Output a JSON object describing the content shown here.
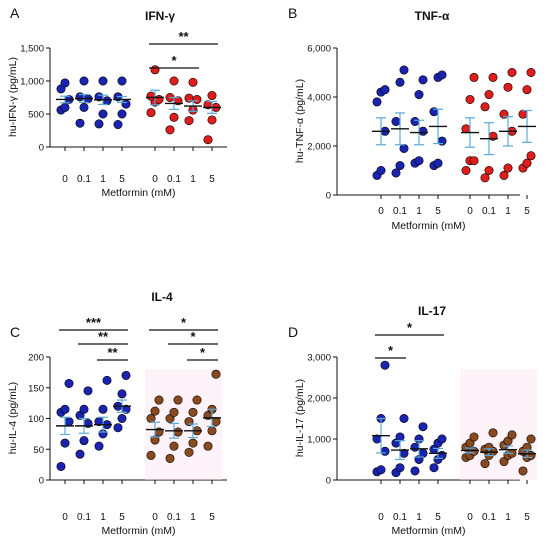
{
  "colors": {
    "blue": "#1a24b0",
    "red": "#e01d1d",
    "brown": "#8a4a20",
    "error_bar": "#5aa9d6",
    "mean_line": "#111111"
  },
  "chart_data": [
    {
      "panel": "A",
      "title": "IFN-γ",
      "type": "scatter",
      "ylabel": "hu-IFN-γ (pg/mL)",
      "xlabel": "Metformin (mM)",
      "yticks": [
        "0",
        "500",
        "1,000",
        "1,500"
      ],
      "ylim": [
        0,
        1500
      ],
      "categories": [
        "0",
        "0.1",
        "1",
        "5"
      ],
      "groups": [
        {
          "color": "blue",
          "mean": [
            720,
            735,
            715,
            720
          ],
          "sem": [
            50,
            60,
            70,
            45
          ],
          "points": [
            [
              560,
              600,
              720,
              880,
              970
            ],
            [
              360,
              600,
              730,
              760,
              1000
            ],
            [
              350,
              500,
              700,
              760,
              1000
            ],
            [
              340,
              500,
              650,
              760,
              1000
            ]
          ]
        },
        {
          "color": "red",
          "mean": [
            750,
            660,
            620,
            600
          ],
          "sem": [
            110,
            90,
            80,
            90
          ],
          "points": [
            [
              520,
              680,
              720,
              770,
              1170
            ],
            [
              260,
              450,
              700,
              750,
              1000
            ],
            [
              400,
              560,
              720,
              740,
              980
            ],
            [
              110,
              410,
              600,
              640,
              780
            ]
          ]
        }
      ],
      "significance": [
        {
          "label": "*",
          "span": [
            "0",
            "1"
          ]
        },
        {
          "label": "**",
          "span": [
            "0",
            "5"
          ]
        }
      ]
    },
    {
      "panel": "B",
      "title": "TNF-α",
      "type": "scatter",
      "ylabel": "hu-TNF-α (pg/mL)",
      "xlabel": "Metformin (mM)",
      "yticks": [
        "0",
        "2,000",
        "4,000",
        "6,000"
      ],
      "ylim": [
        0,
        6000
      ],
      "categories": [
        "0",
        "0.1",
        "1",
        "5"
      ],
      "groups": [
        {
          "color": "blue",
          "mean": [
            2600,
            2700,
            2550,
            2800
          ],
          "sem": [
            550,
            650,
            500,
            700
          ],
          "points": [
            [
              800,
              1000,
              2600,
              3800,
              4200,
              4300
            ],
            [
              900,
              1200,
              1900,
              3000,
              4600,
              5100
            ],
            [
              1300,
              1400,
              2600,
              3000,
              4100,
              4700
            ],
            [
              1200,
              1300,
              2200,
              3400,
              4800,
              4900
            ]
          ]
        },
        {
          "color": "red",
          "mean": [
            2550,
            2300,
            2600,
            2800
          ],
          "sem": [
            600,
            650,
            600,
            650
          ],
          "points": [
            [
              1000,
              1400,
              1400,
              2700,
              3900,
              4800
            ],
            [
              700,
              1000,
              2400,
              3600,
              4100,
              4800
            ],
            [
              800,
              1100,
              2600,
              3300,
              4400,
              5000
            ],
            [
              1100,
              1300,
              1600,
              3300,
              4300,
              5000
            ]
          ]
        }
      ],
      "significance": []
    },
    {
      "panel": "C",
      "title": "IL-4",
      "type": "scatter",
      "ylabel": "hu-IL-4 (pg/mL)",
      "xlabel": "Metformin (mM)",
      "yticks": [
        "0",
        "50",
        "100",
        "150",
        "200"
      ],
      "ylim": [
        0,
        200
      ],
      "categories": [
        "0",
        "0.1",
        "1",
        "5"
      ],
      "groups": [
        {
          "color": "blue",
          "mean": [
            88,
            88,
            90,
            120
          ],
          "sem": [
            14,
            12,
            12,
            10
          ],
          "points": [
            [
              22,
              60,
              95,
              110,
              115,
              157
            ],
            [
              42,
              64,
              92,
              105,
              115,
              145
            ],
            [
              55,
              75,
              90,
              95,
              115,
              162
            ],
            [
              85,
              100,
              115,
              120,
              140,
              170
            ]
          ]
        },
        {
          "color": "brown",
          "mean": [
            82,
            80,
            80,
            101
          ],
          "sem": [
            12,
            12,
            11,
            14
          ],
          "points": [
            [
              40,
              65,
              78,
              100,
              112,
              130
            ],
            [
              35,
              55,
              78,
              100,
              110,
              130
            ],
            [
              45,
              60,
              80,
              95,
              110,
              130
            ],
            [
              55,
              80,
              95,
              105,
              115,
              172
            ]
          ]
        }
      ],
      "significance": [
        {
          "label": "***",
          "span": [
            "0",
            "5"
          ],
          "group": 1
        },
        {
          "label": "**",
          "span": [
            "0.1",
            "5"
          ],
          "group": 1
        },
        {
          "label": "**",
          "span": [
            "1",
            "5"
          ],
          "group": 1
        },
        {
          "label": "*",
          "span": [
            "0",
            "5"
          ],
          "group": 2
        },
        {
          "label": "*",
          "span": [
            "0.1",
            "5"
          ],
          "group": 2
        },
        {
          "label": "*",
          "span": [
            "1",
            "5"
          ],
          "group": 2
        }
      ]
    },
    {
      "panel": "D",
      "title": "IL-17",
      "type": "scatter",
      "ylabel": "hu-IL-17 (pg/mL)",
      "xlabel": "Metformin (mM)",
      "yticks": [
        "0",
        "1,000",
        "2,000",
        "3,000"
      ],
      "ylim": [
        0,
        3000
      ],
      "categories": [
        "0",
        "0.1",
        "1",
        "5"
      ],
      "groups": [
        {
          "color": "blue",
          "mean": [
            1080,
            730,
            760,
            650
          ],
          "sem": [
            420,
            230,
            200,
            120
          ],
          "points": [
            [
              200,
              250,
              700,
              1000,
              1500,
              2800
            ],
            [
              180,
              300,
              650,
              900,
              1050,
              1500
            ],
            [
              220,
              500,
              650,
              800,
              1000,
              1300
            ],
            [
              300,
              500,
              600,
              750,
              900,
              1000
            ]
          ]
        },
        {
          "color": "brown",
          "mean": [
            720,
            680,
            740,
            640
          ],
          "sem": [
            60,
            80,
            90,
            90
          ],
          "points": [
            [
              550,
              600,
              700,
              800,
              900,
              1050
            ],
            [
              400,
              600,
              700,
              750,
              800,
              1150
            ],
            [
              450,
              600,
              650,
              850,
              950,
              1100
            ],
            [
              220,
              550,
              600,
              700,
              800,
              1000
            ]
          ]
        }
      ],
      "significance": [
        {
          "label": "*",
          "span": [
            "0",
            "0.1"
          ]
        },
        {
          "label": "*",
          "span": [
            "0",
            "5"
          ]
        }
      ]
    }
  ]
}
